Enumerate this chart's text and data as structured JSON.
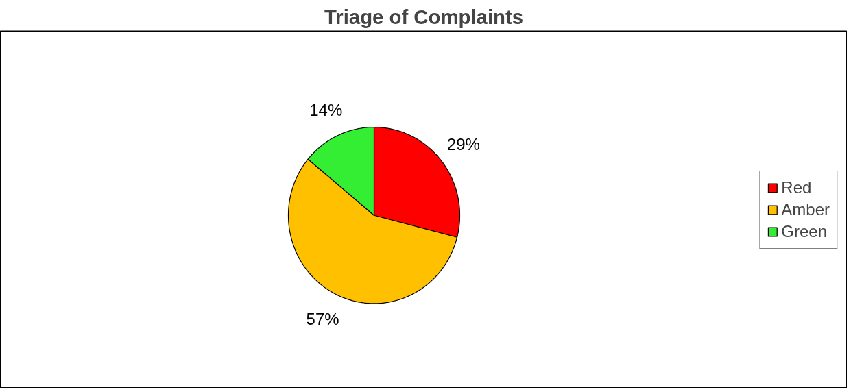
{
  "chart_data": {
    "type": "pie",
    "title": "Triage of Complaints",
    "categories": [
      "Red",
      "Amber",
      "Green"
    ],
    "values": [
      29,
      57,
      14
    ],
    "colors": [
      "#ff0000",
      "#ffc000",
      "#33ee33"
    ],
    "value_labels": [
      "29%",
      "57%",
      "14%"
    ],
    "legend": "right"
  }
}
